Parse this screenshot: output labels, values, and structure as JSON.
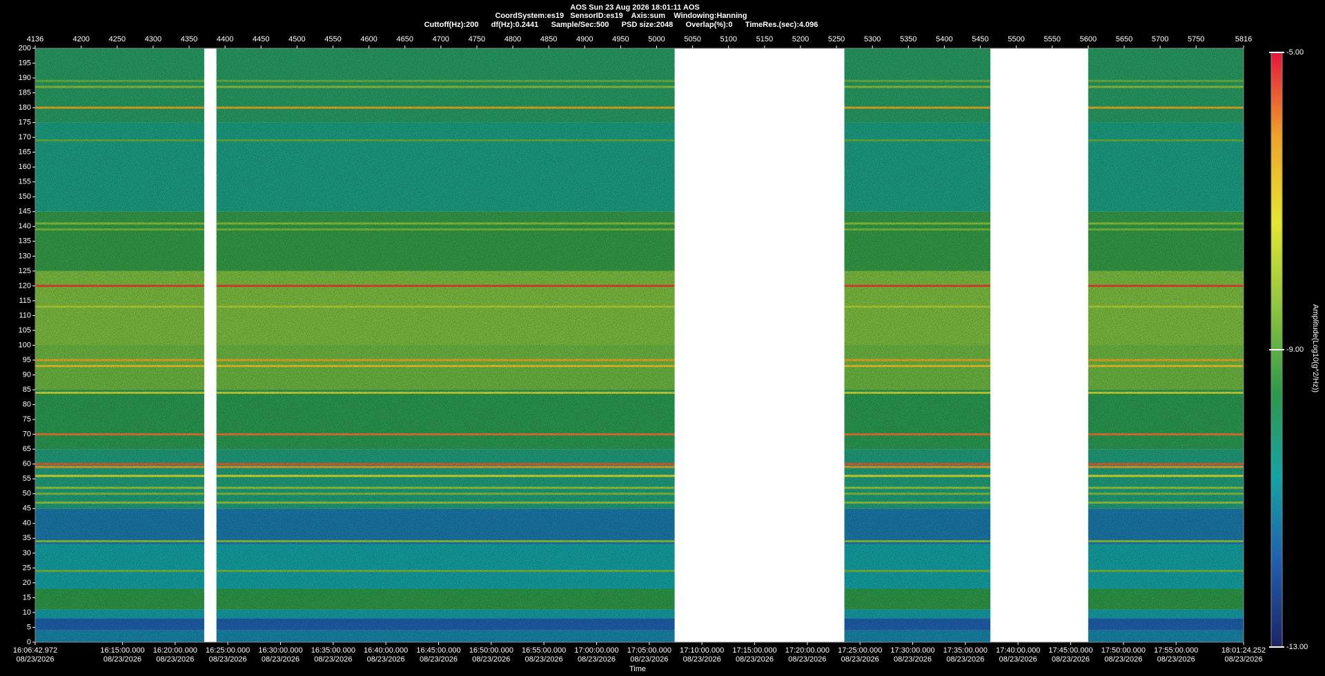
{
  "chart_data": {
    "type": "spectrogram",
    "title": "AOS  Sun 23 Aug 2026 18:01:11  AOS",
    "subtitle": "CoordSystem:es19   SensorID:es19    Axis:sum    Windowing:Hanning",
    "info": "Cuttoff(Hz):200      df(Hz):0.2441      Sample/Sec:500      PSD size:2048      Overlap(%):0      TimeRes.(sec):4.096",
    "x_label": "Time",
    "colorbar_label": "Amplitude(Log10(g^2/Hz))",
    "xlim": [
      4136,
      5816
    ],
    "x2ticks": [
      4136,
      4200,
      4250,
      4300,
      4350,
      4400,
      4450,
      4500,
      4550,
      4600,
      4650,
      4700,
      4750,
      4800,
      4850,
      4900,
      4950,
      5000,
      5050,
      5100,
      5150,
      5200,
      5250,
      5300,
      5350,
      5400,
      5450,
      5500,
      5550,
      5600,
      5650,
      5700,
      5750,
      5816
    ],
    "xticks": [
      {
        "value": 4136,
        "label": "16:06:42.972\n08/23/2026"
      },
      {
        "value": 4257.35,
        "label": "16:15:00.000\n08/23/2026"
      },
      {
        "value": 4330.59,
        "label": "16:20:00.000\n08/23/2026"
      },
      {
        "value": 4403.83,
        "label": "16:25:00.000\n08/23/2026"
      },
      {
        "value": 4477.07,
        "label": "16:30:00.000\n08/23/2026"
      },
      {
        "value": 4550.32,
        "label": "16:35:00.000\n08/23/2026"
      },
      {
        "value": 4623.56,
        "label": "16:40:00.000\n08/23/2026"
      },
      {
        "value": 4696.8,
        "label": "16:45:00.000\n08/23/2026"
      },
      {
        "value": 4770.04,
        "label": "16:50:00.000\n08/23/2026"
      },
      {
        "value": 4843.28,
        "label": "16:55:00.000\n08/23/2026"
      },
      {
        "value": 4916.53,
        "label": "17:00:00.000\n08/23/2026"
      },
      {
        "value": 4989.77,
        "label": "17:05:00.000\n08/23/2026"
      },
      {
        "value": 5063.01,
        "label": "17:10:00.000\n08/23/2026"
      },
      {
        "value": 5136.25,
        "label": "17:15:00.000\n08/23/2026"
      },
      {
        "value": 5209.49,
        "label": "17:20:00.000\n08/23/2026"
      },
      {
        "value": 5282.74,
        "label": "17:25:00.000\n08/23/2026"
      },
      {
        "value": 5355.98,
        "label": "17:30:00.000\n08/23/2026"
      },
      {
        "value": 5429.22,
        "label": "17:35:00.000\n08/23/2026"
      },
      {
        "value": 5502.46,
        "label": "17:40:00.000\n08/23/2026"
      },
      {
        "value": 5575.7,
        "label": "17:45:00.000\n08/23/2026"
      },
      {
        "value": 5648.95,
        "label": "17:50:00.000\n08/23/2026"
      },
      {
        "value": 5722.19,
        "label": "17:55:00.000\n08/23/2026"
      },
      {
        "value": 5816,
        "label": "18:01:24.252\n08/23/2026"
      }
    ],
    "ylim": [
      0,
      200
    ],
    "yticks": [
      0,
      5,
      10,
      15,
      20,
      25,
      30,
      35,
      40,
      45,
      50,
      55,
      60,
      65,
      70,
      75,
      80,
      85,
      90,
      95,
      100,
      105,
      110,
      115,
      120,
      125,
      130,
      135,
      140,
      145,
      150,
      155,
      160,
      165,
      170,
      175,
      180,
      185,
      190,
      195,
      200
    ],
    "clim": [
      -13,
      -5
    ],
    "cticks": [
      {
        "value": -13,
        "label": "-13.00"
      },
      {
        "value": -9,
        "label": "-9.00"
      },
      {
        "value": -5,
        "label": "-5.00"
      }
    ],
    "colormap": [
      "#1c2466",
      "#1f5fae",
      "#14a3a6",
      "#2e9a48",
      "#8cc63f",
      "#e6e62e",
      "#f0a428",
      "#e8143c"
    ],
    "segments": [
      [
        4136,
        4371
      ],
      [
        4388,
        5025
      ],
      [
        5261,
        5464
      ],
      [
        5600,
        5816
      ]
    ],
    "bands": [
      {
        "range": [
          0,
          4
        ],
        "amplitude": -11.2
      },
      {
        "range": [
          4,
          8
        ],
        "amplitude": -11.8
      },
      {
        "range": [
          8,
          11
        ],
        "amplitude": -10.8
      },
      {
        "range": [
          11,
          18
        ],
        "amplitude": -9.6
      },
      {
        "range": [
          18,
          33
        ],
        "amplitude": -10.7
      },
      {
        "range": [
          33,
          45
        ],
        "amplitude": -11.4
      },
      {
        "range": [
          45,
          65
        ],
        "amplitude": -10.2
      },
      {
        "range": [
          65,
          85
        ],
        "amplitude": -9.7
      },
      {
        "range": [
          85,
          100
        ],
        "amplitude": -8.8
      },
      {
        "range": [
          100,
          125
        ],
        "amplitude": -8.6
      },
      {
        "range": [
          125,
          145
        ],
        "amplitude": -9.5
      },
      {
        "range": [
          145,
          175
        ],
        "amplitude": -10.3
      },
      {
        "range": [
          175,
          200
        ],
        "amplitude": -9.9
      }
    ],
    "lines": [
      {
        "freq": 120,
        "amplitude": -5.4
      },
      {
        "freq": 60,
        "amplitude": -5.6
      },
      {
        "freq": 59,
        "amplitude": -6.2
      },
      {
        "freq": 70,
        "amplitude": -5.8
      },
      {
        "freq": 95,
        "amplitude": -6.3
      },
      {
        "freq": 93,
        "amplitude": -6.8
      },
      {
        "freq": 180,
        "amplitude": -6.3
      },
      {
        "freq": 56,
        "amplitude": -7.2
      },
      {
        "freq": 52,
        "amplitude": -8.2
      },
      {
        "freq": 50,
        "amplitude": -8.5
      },
      {
        "freq": 47,
        "amplitude": -8.3
      },
      {
        "freq": 34,
        "amplitude": -8.4
      },
      {
        "freq": 24,
        "amplitude": -8.7
      },
      {
        "freq": 84,
        "amplitude": -7.6
      },
      {
        "freq": 113,
        "amplitude": -7.9
      },
      {
        "freq": 141,
        "amplitude": -8.4
      },
      {
        "freq": 139,
        "amplitude": -8.6
      },
      {
        "freq": 187,
        "amplitude": -8.4
      },
      {
        "freq": 189,
        "amplitude": -8.8
      },
      {
        "freq": 169,
        "amplitude": -8.9
      }
    ]
  }
}
